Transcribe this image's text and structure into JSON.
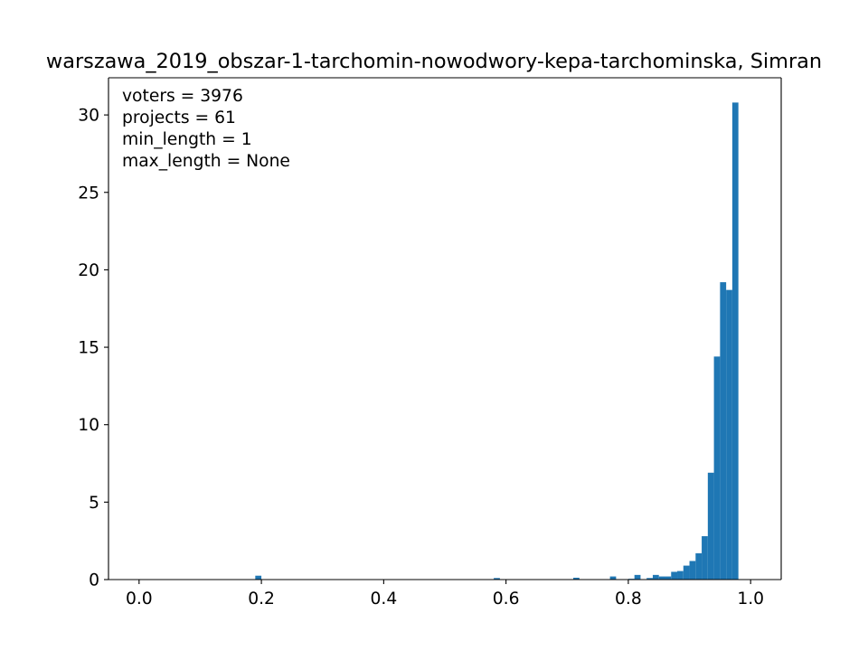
{
  "chart_data": {
    "type": "bar",
    "title": "warszawa_2019_obszar-1-tarchomin-nowodwory-kepa-tarchominska, Simran",
    "xlabel": "",
    "ylabel": "",
    "xlim": [
      -0.05,
      1.05
    ],
    "ylim": [
      0,
      32.4
    ],
    "grid": false,
    "bar_color": "#1f77b4",
    "x_ticks": [
      {
        "value": 0.0,
        "label": "0.0"
      },
      {
        "value": 0.2,
        "label": "0.2"
      },
      {
        "value": 0.4,
        "label": "0.4"
      },
      {
        "value": 0.6,
        "label": "0.6"
      },
      {
        "value": 0.8,
        "label": "0.8"
      },
      {
        "value": 1.0,
        "label": "1.0"
      }
    ],
    "y_ticks": [
      {
        "value": 0,
        "label": "0"
      },
      {
        "value": 5,
        "label": "5"
      },
      {
        "value": 10,
        "label": "10"
      },
      {
        "value": 15,
        "label": "15"
      },
      {
        "value": 20,
        "label": "20"
      },
      {
        "value": 25,
        "label": "25"
      },
      {
        "value": 30,
        "label": "30"
      }
    ],
    "annotations": [
      "voters = 3976",
      "projects = 61",
      "min_length = 1",
      "max_length = None"
    ],
    "bins": [
      {
        "x0": 0.19,
        "x1": 0.2,
        "value": 0.25
      },
      {
        "x0": 0.58,
        "x1": 0.59,
        "value": 0.1
      },
      {
        "x0": 0.71,
        "x1": 0.72,
        "value": 0.12
      },
      {
        "x0": 0.77,
        "x1": 0.78,
        "value": 0.2
      },
      {
        "x0": 0.8,
        "x1": 0.81,
        "value": 0.05
      },
      {
        "x0": 0.81,
        "x1": 0.82,
        "value": 0.3
      },
      {
        "x0": 0.83,
        "x1": 0.84,
        "value": 0.1
      },
      {
        "x0": 0.84,
        "x1": 0.85,
        "value": 0.3
      },
      {
        "x0": 0.85,
        "x1": 0.86,
        "value": 0.2
      },
      {
        "x0": 0.86,
        "x1": 0.87,
        "value": 0.2
      },
      {
        "x0": 0.87,
        "x1": 0.88,
        "value": 0.5
      },
      {
        "x0": 0.88,
        "x1": 0.89,
        "value": 0.55
      },
      {
        "x0": 0.89,
        "x1": 0.9,
        "value": 0.9
      },
      {
        "x0": 0.9,
        "x1": 0.91,
        "value": 1.2
      },
      {
        "x0": 0.91,
        "x1": 0.92,
        "value": 1.7
      },
      {
        "x0": 0.92,
        "x1": 0.93,
        "value": 2.8
      },
      {
        "x0": 0.93,
        "x1": 0.94,
        "value": 6.9
      },
      {
        "x0": 0.94,
        "x1": 0.95,
        "value": 14.4
      },
      {
        "x0": 0.95,
        "x1": 0.96,
        "value": 19.2
      },
      {
        "x0": 0.96,
        "x1": 0.97,
        "value": 18.7
      },
      {
        "x0": 0.97,
        "x1": 0.98,
        "value": 30.8
      }
    ]
  }
}
